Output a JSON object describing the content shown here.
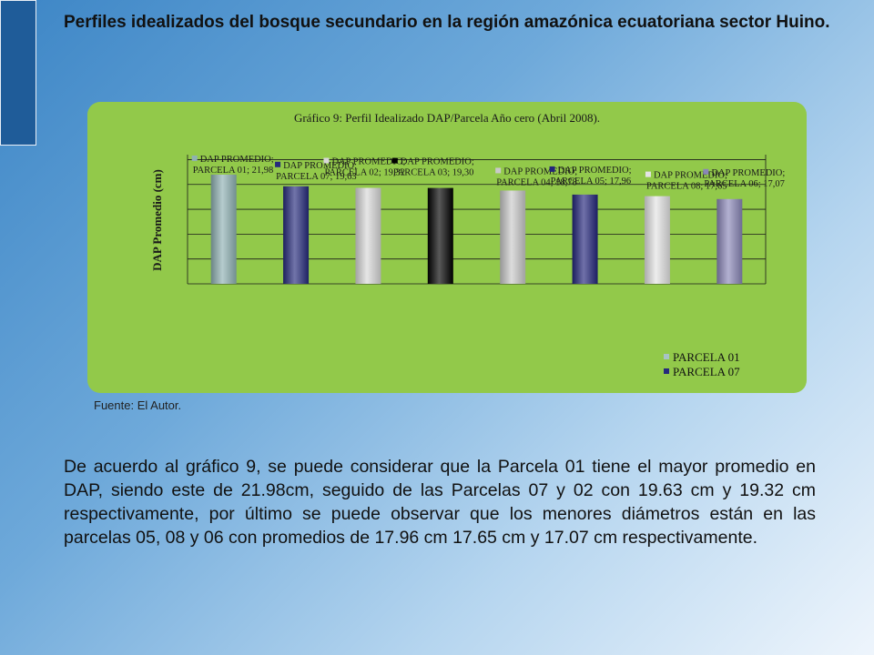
{
  "slide": {
    "title": "Perfiles idealizados del bosque secundario en la región amazónica ecuatoriana sector Huino.",
    "source": "Fuente: El Autor.",
    "paragraph": "De acuerdo al gráfico 9, se puede considerar que la Parcela 01 tiene el mayor promedio en DAP, siendo este de 21.98cm, seguido de las Parcelas 07 y 02 con 19.63 cm y 19.32 cm respectivamente, por último se puede observar que los menores diámetros están en las parcelas 05, 08 y 06 con promedios de 17.96 cm 17.65 cm y 17.07 cm respectivamente."
  },
  "chart_data": {
    "type": "bar",
    "title": "Gráfico 9: Perfil Idealizado DAP/Parcela Año cero (Abril 2008).",
    "ylabel": "DAP Promedio (cm)",
    "ylim": [
      0,
      26
    ],
    "grid": true,
    "legend_placement": "bottom-right",
    "categories": [
      "PARCELA 01",
      "PARCELA 07",
      "PARCELA 02",
      "PARCELA 03",
      "PARCELA 04",
      "PARCELA 05",
      "PARCELA 08",
      "PARCELA 06"
    ],
    "values": [
      21.98,
      19.63,
      19.32,
      19.3,
      18.78,
      17.96,
      17.65,
      17.07
    ],
    "data_labels": [
      [
        "DAP PROMEDIO;",
        "PARCELA 01; 21,98"
      ],
      [
        "DAP PROMEDIO;",
        "PARCELA 07; 19,63"
      ],
      [
        "DAP PROMEDIO;",
        "PARCELA 02; 19,32"
      ],
      [
        "DAP PROMEDIO;",
        "PARCELA 03; 19,30"
      ],
      [
        "DAP PROMEDIO;",
        "PARCELA 04; 18,78"
      ],
      [
        "DAP PROMEDIO;",
        "PARCELA 05; 17,96"
      ],
      [
        "DAP PROMEDIO;",
        "PARCELA 08; 17,65"
      ],
      [
        "DAP PROMEDIO;",
        "PARCELA 06; 17,07"
      ]
    ],
    "bar_colors": [
      "#8fb1b3",
      "#262a7c",
      "#d8d8d8",
      "#000000",
      "#c9c9c9",
      "#23257a",
      "#e4e4e4",
      "#8a87b8"
    ],
    "legend": [
      {
        "label": "PARCELA 01",
        "color": "#a7c3c5"
      },
      {
        "label": "PARCELA 07",
        "color": "#262a7c"
      }
    ]
  }
}
